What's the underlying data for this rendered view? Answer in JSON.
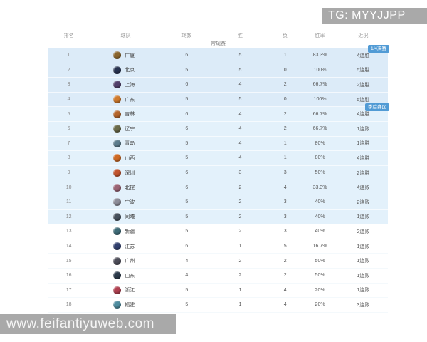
{
  "watermarks": {
    "top_right": "TG: MYYJJPP",
    "bottom_left": "www.feifantiyuweb.com"
  },
  "table": {
    "section_title": "常规赛",
    "columns": [
      "排名",
      "球队",
      "场数",
      "胜",
      "负",
      "胜率",
      "近况"
    ],
    "colors": {
      "badge_bg": "#519bd5",
      "badge_text": "#ffffff",
      "zone_quarterfinal_bg": "#dcebf8",
      "zone_playoff_bg": "#e3f1fb"
    },
    "zone_badges": [
      {
        "label": "1/4决赛",
        "row_index": 0
      },
      {
        "label": "季后赛区",
        "row_index": 4
      }
    ],
    "rows": [
      {
        "rank": "1",
        "team": "广厦",
        "games": "6",
        "wins": "5",
        "losses": "1",
        "pct": "83.3%",
        "recent": "4连胜",
        "zone": "quarterfinal",
        "badge": "1/4决赛",
        "logo_color": "#8a652e"
      },
      {
        "rank": "2",
        "team": "北京",
        "games": "5",
        "wins": "5",
        "losses": "0",
        "pct": "100%",
        "recent": "5连胜",
        "zone": "quarterfinal",
        "logo_color": "#27324f"
      },
      {
        "rank": "3",
        "team": "上海",
        "games": "6",
        "wins": "4",
        "losses": "2",
        "pct": "66.7%",
        "recent": "2连胜",
        "zone": "quarterfinal",
        "logo_color": "#53406b"
      },
      {
        "rank": "4",
        "team": "广东",
        "games": "5",
        "wins": "5",
        "losses": "0",
        "pct": "100%",
        "recent": "5连胜",
        "zone": "quarterfinal",
        "logo_color": "#d07a2c"
      },
      {
        "rank": "5",
        "team": "吉林",
        "games": "6",
        "wins": "4",
        "losses": "2",
        "pct": "66.7%",
        "recent": "4连胜",
        "zone": "playoff",
        "badge": "季后赛区",
        "logo_color": "#b5652a"
      },
      {
        "rank": "6",
        "team": "辽宁",
        "games": "6",
        "wins": "4",
        "losses": "2",
        "pct": "66.7%",
        "recent": "1连败",
        "zone": "playoff",
        "logo_color": "#6b6b4a"
      },
      {
        "rank": "7",
        "team": "青岛",
        "games": "5",
        "wins": "4",
        "losses": "1",
        "pct": "80%",
        "recent": "1连胜",
        "zone": "playoff",
        "logo_color": "#5d7d8d"
      },
      {
        "rank": "8",
        "team": "山西",
        "games": "5",
        "wins": "4",
        "losses": "1",
        "pct": "80%",
        "recent": "4连胜",
        "zone": "playoff",
        "logo_color": "#cf6a24"
      },
      {
        "rank": "9",
        "team": "深圳",
        "games": "6",
        "wins": "3",
        "losses": "3",
        "pct": "50%",
        "recent": "2连胜",
        "zone": "playoff",
        "logo_color": "#c2542e"
      },
      {
        "rank": "10",
        "team": "北控",
        "games": "6",
        "wins": "2",
        "losses": "4",
        "pct": "33.3%",
        "recent": "4连败",
        "zone": "playoff",
        "logo_color": "#9b6475"
      },
      {
        "rank": "11",
        "team": "宁波",
        "games": "5",
        "wins": "2",
        "losses": "3",
        "pct": "40%",
        "recent": "2连败",
        "zone": "playoff",
        "logo_color": "#8d8d99"
      },
      {
        "rank": "12",
        "team": "同曦",
        "games": "5",
        "wins": "2",
        "losses": "3",
        "pct": "40%",
        "recent": "1连败",
        "zone": "playoff",
        "logo_color": "#46505c"
      },
      {
        "rank": "13",
        "team": "新疆",
        "games": "5",
        "wins": "2",
        "losses": "3",
        "pct": "40%",
        "recent": "2连败",
        "zone": "none",
        "logo_color": "#3e6b77"
      },
      {
        "rank": "14",
        "team": "江苏",
        "games": "6",
        "wins": "1",
        "losses": "5",
        "pct": "16.7%",
        "recent": "1连败",
        "zone": "none",
        "logo_color": "#31406e"
      },
      {
        "rank": "15",
        "team": "广州",
        "games": "4",
        "wins": "2",
        "losses": "2",
        "pct": "50%",
        "recent": "1连败",
        "zone": "none",
        "logo_color": "#4d4d59"
      },
      {
        "rank": "16",
        "team": "山东",
        "games": "4",
        "wins": "2",
        "losses": "2",
        "pct": "50%",
        "recent": "1连败",
        "zone": "none",
        "logo_color": "#2c3a4a"
      },
      {
        "rank": "17",
        "team": "浙江",
        "games": "5",
        "wins": "1",
        "losses": "4",
        "pct": "20%",
        "recent": "1连败",
        "zone": "none",
        "logo_color": "#b04050"
      },
      {
        "rank": "18",
        "team": "福建",
        "games": "5",
        "wins": "1",
        "losses": "4",
        "pct": "20%",
        "recent": "3连败",
        "zone": "none",
        "logo_color": "#4f8da0"
      }
    ]
  }
}
